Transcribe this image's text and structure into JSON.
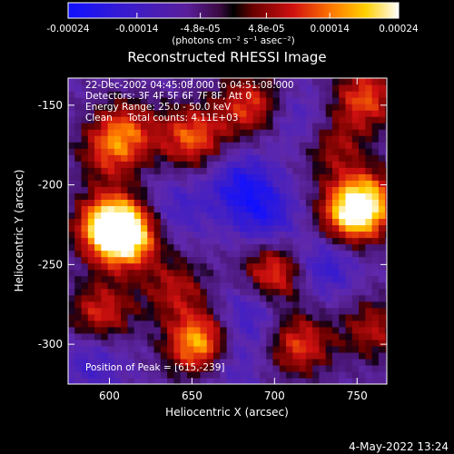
{
  "colorbar": {
    "tick_labels": [
      "-0.00024",
      "-0.00014",
      "-4.8e-05",
      "4.8e-05",
      "0.00014",
      "0.00024"
    ],
    "tick_values": [
      -0.00024,
      -0.00014,
      -4.8e-05,
      4.8e-05,
      0.00014,
      0.00024
    ],
    "range": [
      -0.00024,
      0.00024
    ],
    "unit_label": "(photons cm⁻² s⁻¹ asec⁻²)"
  },
  "chart_data": {
    "type": "heatmap",
    "title": "Reconstructed RHESSI Image",
    "xlabel": "Heliocentric X (arcsec)",
    "ylabel": "Heliocentric Y (arcsec)",
    "xlim": [
      575,
      768
    ],
    "ylim": [
      -325,
      -133
    ],
    "xticks": [
      600,
      650,
      700,
      750
    ],
    "yticks": [
      -150,
      -200,
      -250,
      -300
    ],
    "grid": false,
    "colormap": "blue-purple-red-orange-yellow-white (hot)",
    "annotations": [
      "22-Dec-2002 04:45:08.000 to 04:51:08.000",
      "Detectors: 3F 4F 5F 6F 7F 8F, Att 0",
      "Energy Range: 25.0 - 50.0 keV",
      "Clean     Total counts: 4.11E+03"
    ],
    "peak_label": "Position of Peak = [615,-239]",
    "peak": [
      615,
      -239
    ],
    "sources": [
      {
        "x": 610,
        "y": -232,
        "value": 0.00024
      },
      {
        "x": 600,
        "y": -225,
        "value": 0.00022
      },
      {
        "x": 655,
        "y": -300,
        "value": 0.00024
      },
      {
        "x": 610,
        "y": -165,
        "value": 0.00012
      },
      {
        "x": 650,
        "y": -170,
        "value": 0.00016
      },
      {
        "x": 685,
        "y": -150,
        "value": 0.00014
      },
      {
        "x": 755,
        "y": -145,
        "value": 0.00015
      },
      {
        "x": 755,
        "y": -210,
        "value": 0.0002
      },
      {
        "x": 745,
        "y": -220,
        "value": 0.00016
      },
      {
        "x": 700,
        "y": -255,
        "value": 0.00016
      },
      {
        "x": 715,
        "y": -300,
        "value": 0.00014
      },
      {
        "x": 595,
        "y": -280,
        "value": 0.00013
      },
      {
        "x": 760,
        "y": -290,
        "value": 0.0001
      },
      {
        "x": 640,
        "y": -265,
        "value": 0.0001
      },
      {
        "x": 600,
        "y": -180,
        "value": 0.0001
      },
      {
        "x": 735,
        "y": -175,
        "value": 9e-05
      }
    ],
    "troughs": [
      {
        "x": 680,
        "y": -200,
        "value": -0.00016
      },
      {
        "x": 695,
        "y": -220,
        "value": -0.00014
      },
      {
        "x": 730,
        "y": -250,
        "value": -0.00014
      },
      {
        "x": 685,
        "y": -280,
        "value": -0.00012
      },
      {
        "x": 670,
        "y": -310,
        "value": -0.00012
      },
      {
        "x": 590,
        "y": -310,
        "value": -0.0001
      },
      {
        "x": 640,
        "y": -215,
        "value": -0.0001
      },
      {
        "x": 715,
        "y": -160,
        "value": -0.0001
      }
    ]
  },
  "footer": {
    "timestamp": "4-May-2022 13:24"
  }
}
